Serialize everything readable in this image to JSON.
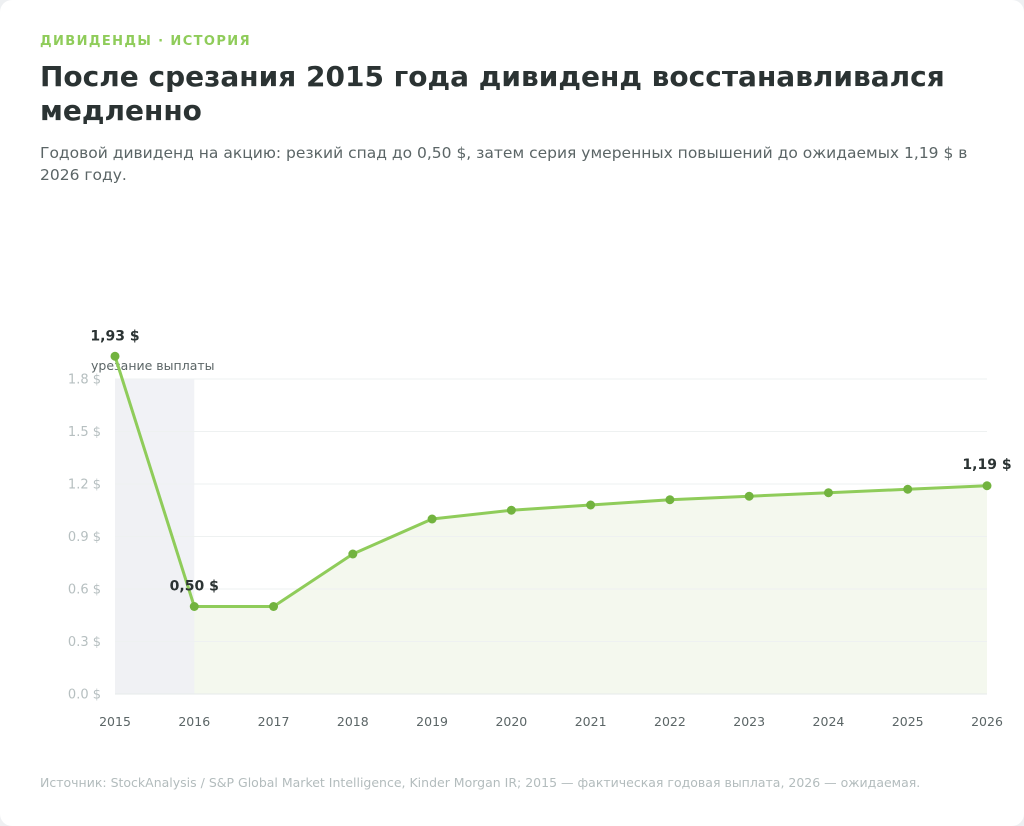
{
  "header": {
    "kicker": "ДИВИДЕНДЫ · ИСТОРИЯ",
    "title": "После срезания 2015 года дивиденд восстанавливался медленно",
    "subtitle": "Годовой дивиденд на акцию: резкий спад до 0,50 $, затем серия умеренных повышений до ожидаемых 1,19 $ в 2026 году."
  },
  "footer": {
    "source": "Источник: StockAnalysis / S&P Global Market Intelligence, Kinder Morgan IR; 2015 — фактическая годовая выплата, 2026 — ожидаемая."
  },
  "chart_data": {
    "type": "line",
    "x": [
      "2015",
      "2016",
      "2017",
      "2018",
      "2019",
      "2020",
      "2021",
      "2022",
      "2023",
      "2024",
      "2025",
      "2026"
    ],
    "series": [
      {
        "values": [
          1.93,
          0.5,
          0.5,
          0.8,
          1.0,
          1.05,
          1.08,
          1.11,
          1.13,
          1.15,
          1.17,
          1.19
        ]
      }
    ],
    "ylim": [
      0,
      1.8
    ],
    "y_ticks": [
      "0.0 $",
      "0.3 $",
      "0.6 $",
      "0.9 $",
      "1.2 $",
      "1.5 $",
      "1.8 $"
    ],
    "y_tick_values": [
      0,
      0.3,
      0.6,
      0.9,
      1.2,
      1.5,
      1.8
    ],
    "data_labels": [
      {
        "index": 0,
        "text": "1,93 $"
      },
      {
        "index": 1,
        "text": "0,50 $"
      },
      {
        "index": 11,
        "text": "1,19 $"
      }
    ],
    "annotation": {
      "text": "урезание выплаты",
      "from": "2015",
      "to": "2016"
    },
    "grid": true,
    "colors": {
      "line": "#8fcc5a",
      "point": "#72b33f",
      "fill": "#f4f8ee",
      "cut_band": "#eef0f4"
    }
  }
}
